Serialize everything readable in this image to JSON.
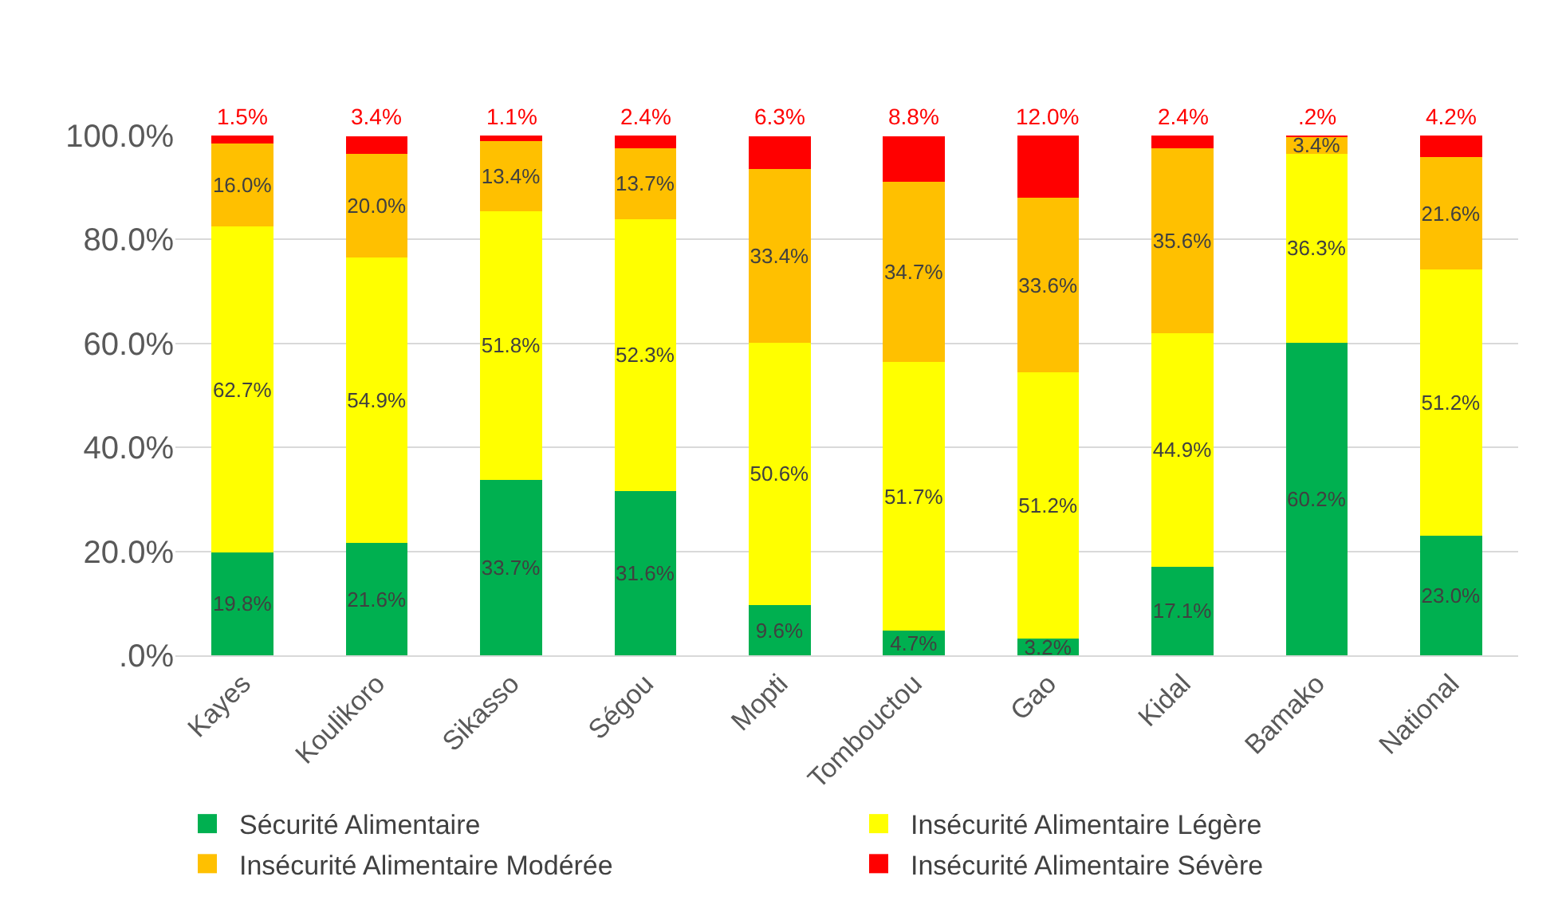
{
  "chart_data": {
    "type": "bar",
    "stacked": true,
    "categories": [
      "Kayes",
      "Koulikoro",
      "Sikasso",
      "Ségou",
      "Mopti",
      "Tombouctou",
      "Gao",
      "Kidal",
      "Bamako",
      "National"
    ],
    "series": [
      {
        "name": "Sécurité Alimentaire",
        "color": "#00b050",
        "values": [
          19.8,
          21.6,
          33.7,
          31.6,
          9.6,
          4.7,
          3.2,
          17.1,
          60.2,
          23.0
        ],
        "value_labels": [
          "19.8%",
          "21.6%",
          "33.7%",
          "31.6%",
          "9.6%",
          "4.7%",
          "3.2%",
          "17.1%",
          "60.2%",
          "23.0%"
        ]
      },
      {
        "name": "Insécurité Alimentaire Légère",
        "color": "#ffff00",
        "values": [
          62.7,
          54.9,
          51.8,
          52.3,
          50.6,
          51.7,
          51.2,
          44.9,
          36.3,
          51.2
        ],
        "value_labels": [
          "62.7%",
          "54.9%",
          "51.8%",
          "52.3%",
          "50.6%",
          "51.7%",
          "51.2%",
          "44.9%",
          "36.3%",
          "51.2%"
        ]
      },
      {
        "name": "Insécurité Alimentaire Modérée",
        "color": "#ffc000",
        "values": [
          16.0,
          20.0,
          13.4,
          13.7,
          33.4,
          34.7,
          33.6,
          35.6,
          3.4,
          21.6
        ],
        "value_labels": [
          "16.0%",
          "20.0%",
          "13.4%",
          "13.7%",
          "33.4%",
          "34.7%",
          "33.6%",
          "35.6%",
          "3.4%",
          "21.6%"
        ]
      },
      {
        "name": "Insécurité Alimentaire Sévère",
        "color": "#ff0000",
        "values": [
          1.5,
          3.4,
          1.1,
          2.4,
          6.3,
          8.8,
          12.0,
          2.4,
          0.2,
          4.2
        ],
        "value_labels": [
          "1.5%",
          "3.4%",
          "1.1%",
          "2.4%",
          "6.3%",
          "8.8%",
          "12.0%",
          "2.4%",
          ".2%",
          "4.2%"
        ]
      }
    ],
    "ylim": [
      0,
      100
    ],
    "yticks": [
      {
        "value": 0,
        "label": ".0%"
      },
      {
        "value": 20,
        "label": "20.0%"
      },
      {
        "value": 40,
        "label": "40.0%"
      },
      {
        "value": 60,
        "label": "60.0%"
      },
      {
        "value": 80,
        "label": "80.0%"
      },
      {
        "value": 100,
        "label": "100.0%"
      }
    ],
    "grid": "y",
    "legend": "bottom"
  }
}
